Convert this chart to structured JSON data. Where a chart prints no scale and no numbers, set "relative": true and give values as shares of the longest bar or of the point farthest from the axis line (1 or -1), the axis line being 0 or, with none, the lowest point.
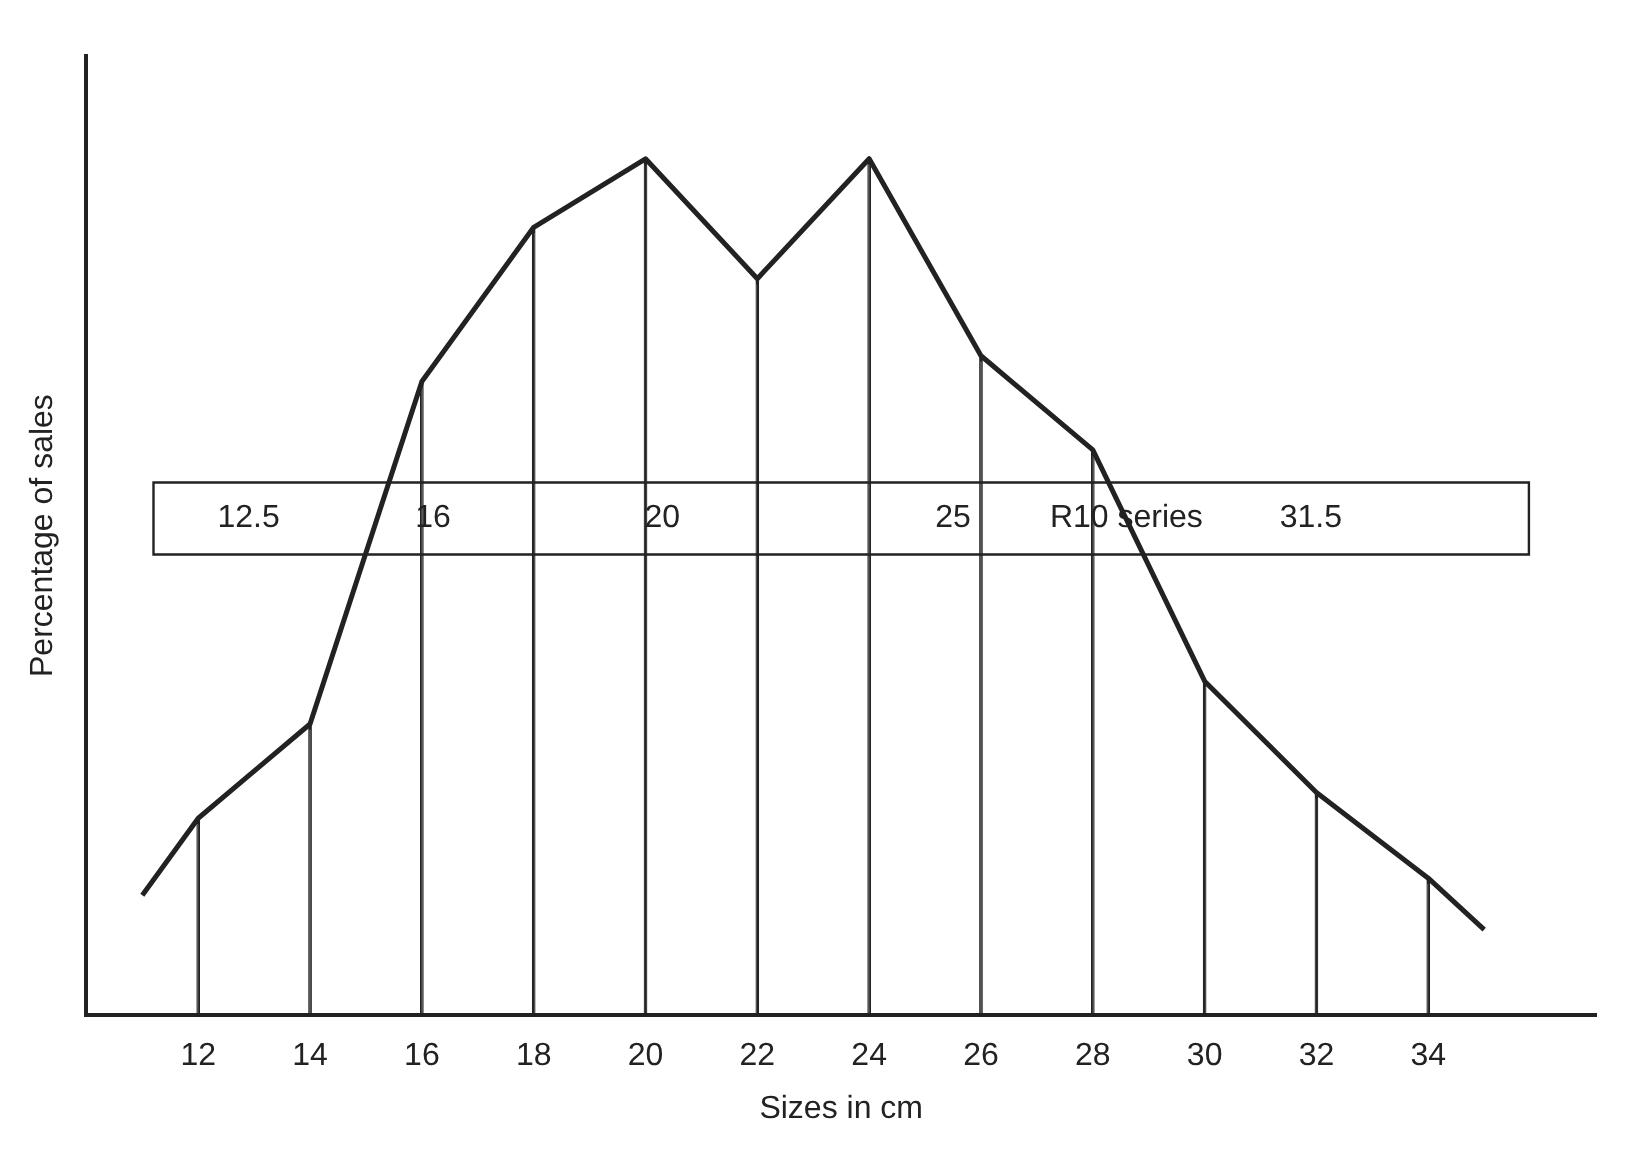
{
  "chart_data": {
    "type": "line",
    "relative": true,
    "xlabel": "Sizes in cm",
    "ylabel": "Percentage of sales",
    "xlim": [
      10,
      37
    ],
    "xticks": [
      12,
      14,
      16,
      18,
      20,
      22,
      24,
      26,
      28,
      30,
      32,
      34
    ],
    "series": [
      {
        "color": "#222222",
        "x": [
          11,
          12,
          14,
          16,
          18,
          20,
          22,
          24,
          26,
          28,
          30,
          32,
          34,
          35
        ],
        "values": [
          0.14,
          0.23,
          0.34,
          0.74,
          0.92,
          1.0,
          0.86,
          1.0,
          0.77,
          0.66,
          0.39,
          0.26,
          0.16,
          0.1
        ]
      },
      {
        "type": "bar",
        "color": "#222222",
        "x": [
          12,
          14,
          16,
          18,
          20,
          22,
          24,
          26,
          28,
          30,
          32,
          34
        ],
        "values": [
          0.23,
          0.34,
          0.74,
          0.92,
          1.0,
          0.86,
          1.0,
          0.77,
          0.66,
          0.39,
          0.26,
          0.16
        ]
      }
    ],
    "annotations": [
      "12.5",
      "16",
      "20",
      "25",
      "R10 series",
      "31.5"
    ],
    "legend": false,
    "marker": "none",
    "line_style": "solid"
  }
}
